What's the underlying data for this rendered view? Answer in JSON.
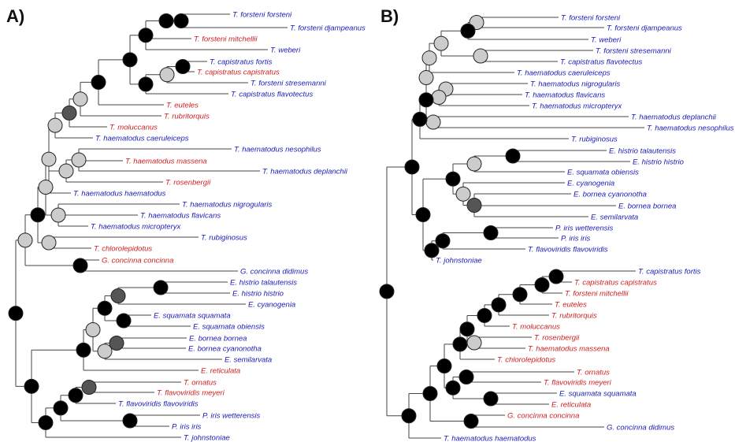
{
  "colors": {
    "blue": "#1a1ab3",
    "red": "#cc1f1f",
    "support_high": "#000000",
    "support_mid": "#555555",
    "support_low": "#cccccc"
  },
  "panels": [
    {
      "label": "A)",
      "tips": [
        {
          "text": "T. forsteni forsteni",
          "color": "blue"
        },
        {
          "text": "T. forsteni djampeanus",
          "color": "blue"
        },
        {
          "text": "T. forsteni mitchellii",
          "color": "red"
        },
        {
          "text": "T. weberi",
          "color": "blue"
        },
        {
          "text": "T. capistratus fortis",
          "color": "blue"
        },
        {
          "text": "T. capistratus capistratus",
          "color": "red"
        },
        {
          "text": "T. forsteni stresemanni",
          "color": "blue"
        },
        {
          "text": "T. capistratus flavotectus",
          "color": "blue"
        },
        {
          "text": "T. euteles",
          "color": "red"
        },
        {
          "text": "T. rubritorquis",
          "color": "red"
        },
        {
          "text": "T. moluccanus",
          "color": "red"
        },
        {
          "text": "T. haematodus caeruleiceps",
          "color": "blue"
        },
        {
          "text": "T. haematodus nesophilus",
          "color": "blue"
        },
        {
          "text": "T. haematodus massena",
          "color": "red"
        },
        {
          "text": "T. haematodus deplanchii",
          "color": "blue"
        },
        {
          "text": "T. rosenbergii",
          "color": "red"
        },
        {
          "text": "T. haematodus haematodus",
          "color": "blue"
        },
        {
          "text": "T. haematodus nigrogularis",
          "color": "blue"
        },
        {
          "text": "T. haematodus flavicans",
          "color": "blue"
        },
        {
          "text": "T. haematodus micropteryx",
          "color": "blue"
        },
        {
          "text": "T. rubiginosus",
          "color": "blue"
        },
        {
          "text": "T. chlorolepidotus",
          "color": "red"
        },
        {
          "text": "G. concinna concinna",
          "color": "red"
        },
        {
          "text": "G. concinna didimus",
          "color": "blue"
        },
        {
          "text": "E. histrio talautensis",
          "color": "blue"
        },
        {
          "text": "E. histrio histrio",
          "color": "blue"
        },
        {
          "text": "E. cyanogenia",
          "color": "blue"
        },
        {
          "text": "E. squamata squamata",
          "color": "blue"
        },
        {
          "text": "E. squamata obiensis",
          "color": "blue"
        },
        {
          "text": "E. bornea bornea",
          "color": "blue"
        },
        {
          "text": "E. bornea cyanonotha",
          "color": "blue"
        },
        {
          "text": "E. semilarvata",
          "color": "blue"
        },
        {
          "text": "E. reticulata",
          "color": "red"
        },
        {
          "text": "T. ornatus",
          "color": "red"
        },
        {
          "text": "T. flavoviridis meyeri",
          "color": "red"
        },
        {
          "text": "T. flavoviridis flavoviridis",
          "color": "blue"
        },
        {
          "text": "P. iris wetterensis",
          "color": "blue"
        },
        {
          "text": "P. iris iris",
          "color": "blue"
        },
        {
          "text": "T. johnstoniae",
          "color": "blue"
        }
      ]
    },
    {
      "label": "B)",
      "tips": [
        {
          "text": "T. forsteni forsteni",
          "color": "blue"
        },
        {
          "text": "T. forsteni djampeanus",
          "color": "blue"
        },
        {
          "text": "T. weberi",
          "color": "blue"
        },
        {
          "text": "T. forsteni stresemanni",
          "color": "blue"
        },
        {
          "text": "T. capistratus flavotectus",
          "color": "blue"
        },
        {
          "text": "T. haematodus caeruleiceps",
          "color": "blue"
        },
        {
          "text": "T. haematodus nigrogularis",
          "color": "blue"
        },
        {
          "text": "T. haematodus flavicans",
          "color": "blue"
        },
        {
          "text": "T. haematodus micropteryx",
          "color": "blue"
        },
        {
          "text": "T. haematodus deplanchii",
          "color": "blue"
        },
        {
          "text": "T. haematodus nesophilus",
          "color": "blue"
        },
        {
          "text": "T. rubiginosus",
          "color": "blue"
        },
        {
          "text": "E. histrio talautensis",
          "color": "blue"
        },
        {
          "text": "E. histrio histrio",
          "color": "blue"
        },
        {
          "text": "E. squamata obiensis",
          "color": "blue"
        },
        {
          "text": "E. cyanogenia",
          "color": "blue"
        },
        {
          "text": "E. bornea cyanonotha",
          "color": "blue"
        },
        {
          "text": "E. bornea bornea",
          "color": "blue"
        },
        {
          "text": "E. semilarvata",
          "color": "blue"
        },
        {
          "text": "P. iris wetterensis",
          "color": "blue"
        },
        {
          "text": "P. iris iris",
          "color": "blue"
        },
        {
          "text": "T. flavoviridis flavoviridis",
          "color": "blue"
        },
        {
          "text": "T. johnstoniae",
          "color": "blue"
        },
        {
          "text": "T. capistratus fortis",
          "color": "blue"
        },
        {
          "text": "T. capistratus capistratus",
          "color": "red"
        },
        {
          "text": "T. forsteni mitchellii",
          "color": "red"
        },
        {
          "text": "T. euteles",
          "color": "red"
        },
        {
          "text": "T. rubritorquis",
          "color": "red"
        },
        {
          "text": "T. moluccanus",
          "color": "red"
        },
        {
          "text": "T. rosenbergii",
          "color": "red"
        },
        {
          "text": "T. haematodus massena",
          "color": "red"
        },
        {
          "text": "T. chlorolepidotus",
          "color": "red"
        },
        {
          "text": "T. ornatus",
          "color": "red"
        },
        {
          "text": "T. flavoviridis meyeri",
          "color": "red"
        },
        {
          "text": "E. squamata squamata",
          "color": "blue"
        },
        {
          "text": "E. reticulata",
          "color": "red"
        },
        {
          "text": "G. concinna concinna",
          "color": "red"
        },
        {
          "text": "G. concinna didimus",
          "color": "blue"
        },
        {
          "text": "T. haematodus haematodus",
          "color": "blue"
        }
      ]
    }
  ]
}
